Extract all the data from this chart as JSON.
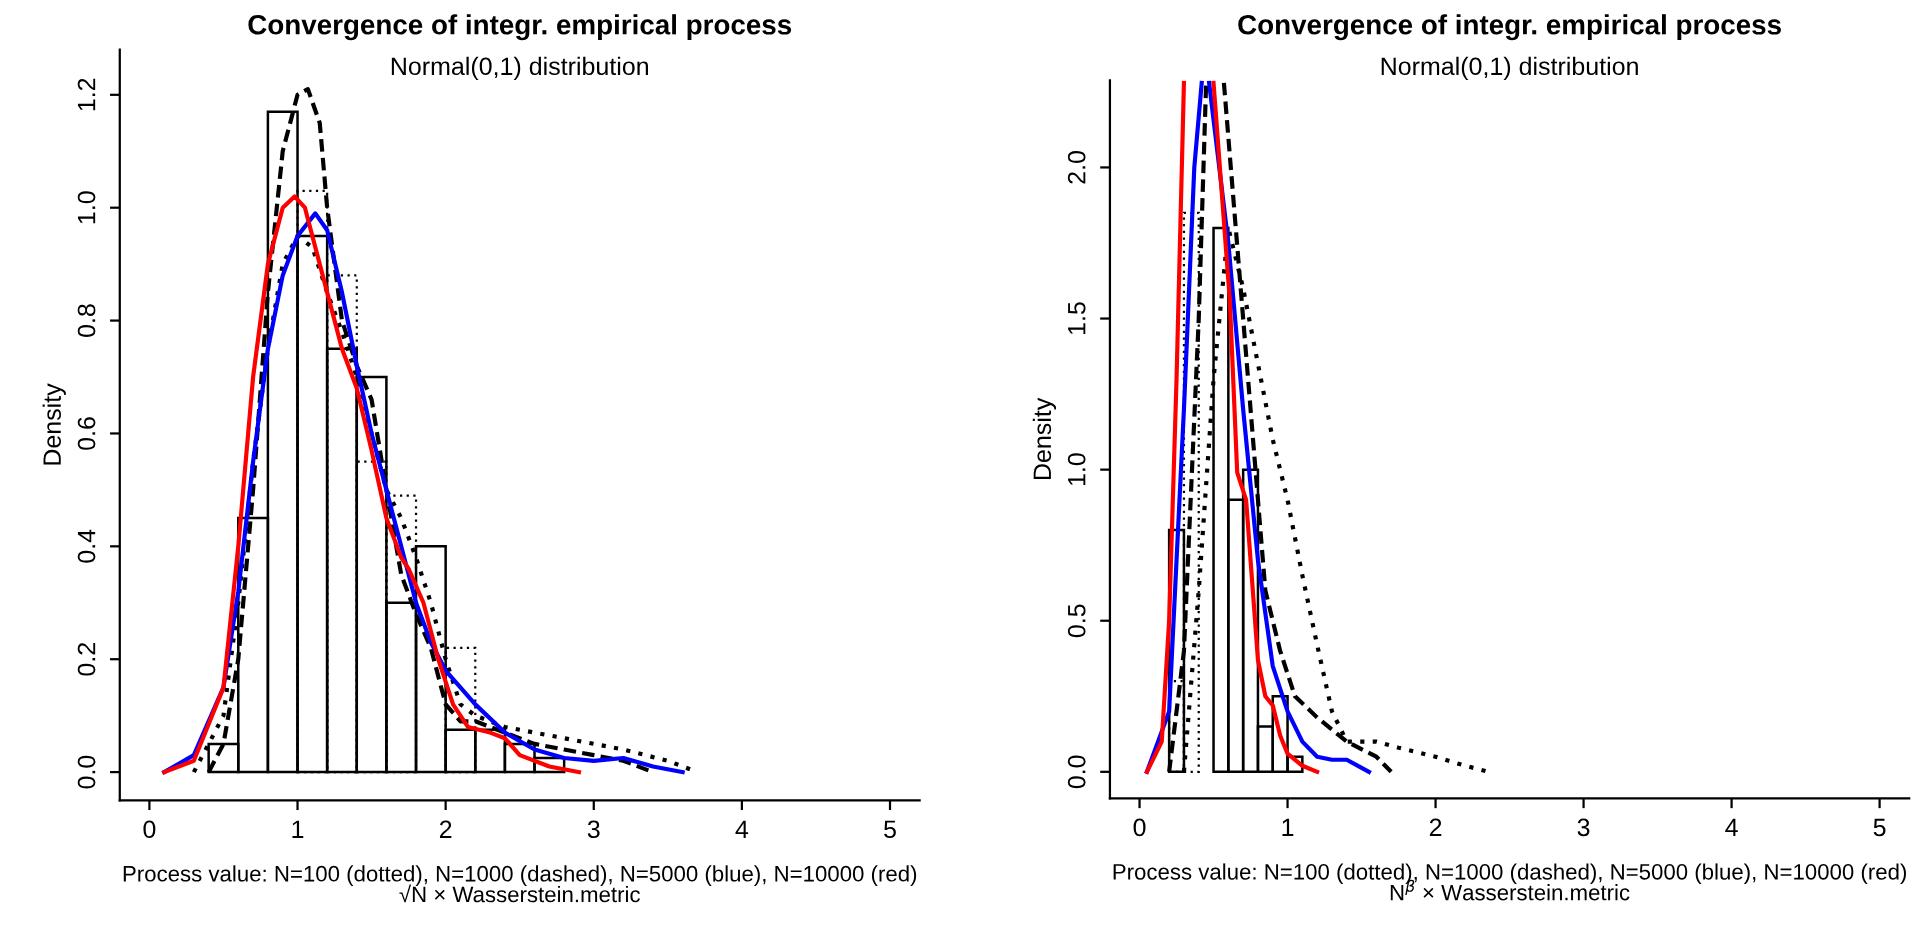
{
  "chart_data": [
    {
      "type": "histogram",
      "title": "Convergence of integr. empirical process",
      "subtitle": "Normal(0,1) distribution",
      "xlabel": "Process value: N=100 (dotted), N=1000 (dashed), N=5000 (blue), N=10000 (red)\n√N × Wasserstein.metric",
      "ylabel": "Density",
      "bins": [
        0.4,
        0.6,
        0.8,
        1.0,
        1.2,
        1.4,
        1.6,
        1.8,
        2.0,
        2.2,
        2.4,
        2.6,
        2.8
      ],
      "values": [
        0.05,
        0.45,
        1.17,
        0.95,
        0.75,
        0.7,
        0.3,
        0.4,
        0.075,
        0.075,
        0.05,
        0.025
      ],
      "color": "#000000",
      "xlim": [
        -0.2,
        5.2
      ],
      "xticks": [
        0,
        1,
        2,
        3,
        4,
        5
      ],
      "ylim": [
        -0.05,
        1.28
      ],
      "yticks": [
        {
          "value": 0,
          "label": "0.0"
        },
        0.2,
        0.4,
        0.6,
        0.8,
        {
          "value": 1,
          "label": "1.0"
        },
        1.2
      ],
      "series": [
        {
          "type": "histogram",
          "line_style": "dotted",
          "color": "#000000",
          "bins": [
            1.0,
            1.2,
            1.4,
            1.6,
            1.8,
            2.0,
            2.2
          ],
          "values": [
            1.03,
            0.88,
            0.55,
            0.49,
            null,
            0.22
          ]
        },
        {
          "type": "line",
          "line_style": "dotted",
          "color": "#000000",
          "x": [
            0.3,
            0.5,
            0.6,
            0.7,
            0.8,
            0.9,
            1.0,
            1.1,
            1.2,
            1.3,
            1.4,
            1.5,
            1.6,
            1.7,
            1.8,
            1.9,
            2.0,
            2.1,
            2.2,
            2.4,
            2.6,
            2.8,
            3.0,
            3.2,
            3.5,
            3.7
          ],
          "values": [
            0.0,
            0.1,
            0.3,
            0.55,
            0.75,
            0.9,
            0.95,
            0.93,
            0.85,
            0.78,
            0.7,
            0.6,
            0.5,
            0.45,
            0.38,
            0.3,
            0.2,
            0.12,
            0.1,
            0.08,
            0.07,
            0.06,
            0.05,
            0.04,
            0.02,
            0.0
          ]
        },
        {
          "type": "line",
          "line_style": "dashed",
          "color": "#000000",
          "x": [
            0.4,
            0.5,
            0.6,
            0.7,
            0.8,
            0.9,
            1.0,
            1.07,
            1.15,
            1.2,
            1.3,
            1.4,
            1.5,
            1.6,
            1.7,
            1.8,
            1.9,
            2.0,
            2.1,
            2.2,
            2.4,
            2.6,
            2.8,
            3.0,
            3.2,
            3.4
          ],
          "values": [
            0.0,
            0.05,
            0.2,
            0.5,
            0.85,
            1.1,
            1.2,
            1.21,
            1.15,
            1.0,
            0.8,
            0.72,
            0.66,
            0.5,
            0.35,
            0.28,
            0.22,
            0.12,
            0.09,
            0.09,
            0.07,
            0.05,
            0.04,
            0.03,
            0.02,
            0.0
          ]
        },
        {
          "type": "line",
          "line_style": "solid",
          "color": "#0000ff",
          "x": [
            0.1,
            0.3,
            0.5,
            0.6,
            0.7,
            0.8,
            0.9,
            1.0,
            1.12,
            1.2,
            1.3,
            1.4,
            1.5,
            1.6,
            1.7,
            1.8,
            1.9,
            2.0,
            2.2,
            2.4,
            2.6,
            2.8,
            3.0,
            3.2,
            3.4,
            3.6
          ],
          "values": [
            0.0,
            0.03,
            0.15,
            0.32,
            0.55,
            0.75,
            0.88,
            0.95,
            0.99,
            0.96,
            0.85,
            0.72,
            0.6,
            0.5,
            0.4,
            0.3,
            0.23,
            0.18,
            0.12,
            0.07,
            0.04,
            0.025,
            0.02,
            0.025,
            0.01,
            0.0
          ]
        },
        {
          "type": "line",
          "line_style": "solid",
          "color": "#ff0000",
          "x": [
            0.1,
            0.3,
            0.5,
            0.6,
            0.7,
            0.8,
            0.9,
            0.98,
            1.05,
            1.2,
            1.3,
            1.4,
            1.5,
            1.6,
            1.7,
            1.75,
            1.85,
            1.95,
            2.05,
            2.15,
            2.3,
            2.4,
            2.5,
            2.7,
            2.9
          ],
          "values": [
            0.0,
            0.02,
            0.15,
            0.4,
            0.7,
            0.9,
            1.0,
            1.02,
            1.0,
            0.85,
            0.75,
            0.68,
            0.57,
            0.45,
            0.38,
            0.36,
            0.3,
            0.2,
            0.12,
            0.08,
            0.07,
            0.06,
            0.03,
            0.01,
            0.0
          ]
        }
      ]
    },
    {
      "type": "histogram",
      "title": "Convergence of integr. empirical process",
      "subtitle": "Normal(0,1) distribution",
      "xlabel": "Process value: N=100 (dotted), N=1000 (dashed), N=5000 (blue), N=10000 (red)\nN$^{β}$ × Wasserstein.metric",
      "ylabel": "Density",
      "bins": [
        0.2,
        0.3,
        0.4,
        0.5,
        0.6,
        0.7,
        0.8,
        0.9,
        1.0,
        1.1
      ],
      "values": [
        0.8,
        null,
        null,
        1.8,
        0.9,
        1.0,
        0.15,
        0.25,
        0.05
      ],
      "color": "#000000",
      "xlim": [
        -0.2,
        5.2
      ],
      "xticks": [
        0,
        1,
        2,
        3,
        4,
        5
      ],
      "ylim": [
        -0.088,
        2.288
      ],
      "yticks": [
        {
          "value": 0,
          "label": "0.0"
        },
        0.5,
        {
          "value": 1,
          "label": "1.0"
        },
        1.5,
        {
          "value": 2,
          "label": "2.0"
        }
      ],
      "series": [
        {
          "type": "histogram",
          "line_style": "dotted",
          "color": "#000000",
          "bins": [
            0.2,
            0.3,
            0.4
          ],
          "values": [
            0.3,
            1.85
          ]
        },
        {
          "type": "line",
          "line_style": "dotted",
          "color": "#000000",
          "x": [
            0.3,
            0.4,
            0.5,
            0.6,
            0.7,
            0.8,
            0.9,
            1.0,
            1.1,
            1.2,
            1.3,
            1.4,
            1.6,
            1.75,
            2.0,
            2.2,
            2.36
          ],
          "values": [
            0.0,
            0.6,
            1.3,
            1.8,
            1.6,
            1.35,
            1.1,
            0.9,
            0.65,
            0.42,
            0.2,
            0.1,
            0.1,
            0.08,
            0.05,
            0.02,
            0.0
          ]
        },
        {
          "type": "line",
          "line_style": "dashed",
          "color": "#000000",
          "x": [
            0.2,
            0.3,
            0.4,
            0.45,
            0.51,
            0.57,
            0.65,
            0.75,
            0.85,
            0.95,
            1.05,
            1.2,
            1.4,
            1.6,
            1.7
          ],
          "values": [
            0.0,
            0.4,
            1.5,
            2.28,
            null,
            2.28,
            1.8,
            1.2,
            0.6,
            0.4,
            0.25,
            0.18,
            0.1,
            0.05,
            0.0
          ]
        },
        {
          "type": "line",
          "line_style": "solid",
          "color": "#0000ff",
          "x": [
            0.05,
            0.2,
            0.3,
            0.37,
            0.42,
            0.45,
            0.47,
            0.6,
            0.7,
            0.8,
            0.9,
            1.0,
            1.1,
            1.2,
            1.3,
            1.4,
            1.55
          ],
          "values": [
            0.0,
            0.2,
            1.2,
            2.0,
            2.28,
            null,
            2.28,
            1.75,
            1.2,
            0.7,
            0.35,
            0.2,
            0.1,
            0.05,
            0.04,
            0.04,
            0.0
          ]
        },
        {
          "type": "line",
          "line_style": "solid",
          "color": "#ff0000",
          "x": [
            0.05,
            0.15,
            0.2,
            0.25,
            0.3,
            0.4,
            0.5,
            0.61,
            0.66,
            0.72,
            0.8,
            0.85,
            0.9,
            0.95,
            1.0,
            1.1,
            1.2
          ],
          "values": [
            0.0,
            0.1,
            0.5,
            1.3,
            2.28,
            null,
            2.28,
            1.56,
            0.99,
            0.9,
            0.37,
            0.25,
            0.22,
            0.12,
            0.06,
            0.02,
            0.0
          ]
        }
      ]
    }
  ]
}
